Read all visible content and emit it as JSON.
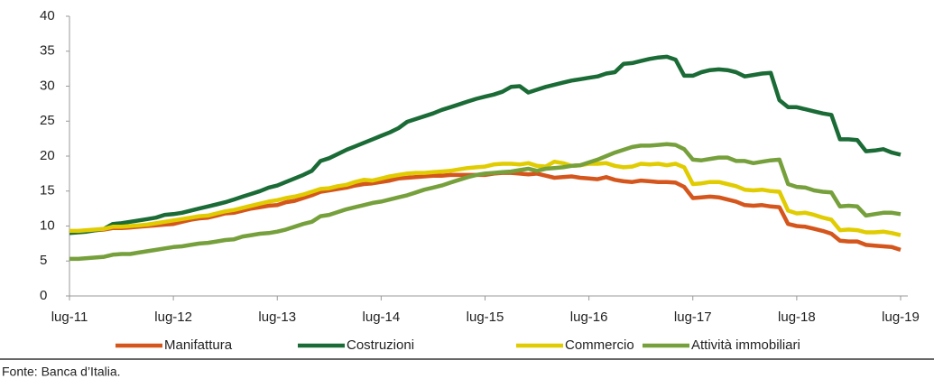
{
  "chart_data": {
    "type": "line",
    "categories": [
      "lug-11",
      null,
      null,
      null,
      null,
      null,
      null,
      null,
      null,
      null,
      null,
      null,
      "lug-12",
      null,
      null,
      null,
      null,
      null,
      null,
      null,
      null,
      null,
      null,
      null,
      "lug-13",
      null,
      null,
      null,
      null,
      null,
      null,
      null,
      null,
      null,
      null,
      null,
      "lug-14",
      null,
      null,
      null,
      null,
      null,
      null,
      null,
      null,
      null,
      null,
      null,
      "lug-15",
      null,
      null,
      null,
      null,
      null,
      null,
      null,
      null,
      null,
      null,
      null,
      "lug-16",
      null,
      null,
      null,
      null,
      null,
      null,
      null,
      null,
      null,
      null,
      null,
      "lug-17",
      null,
      null,
      null,
      null,
      null,
      null,
      null,
      null,
      null,
      null,
      null,
      "lug-18",
      null,
      null,
      null,
      null,
      null,
      null,
      null,
      null,
      null,
      null,
      null,
      "lug-19"
    ],
    "series": [
      {
        "name": "Manifattura",
        "color": "#d4561c",
        "values": [
          9.2,
          9.2,
          9.3,
          9.4,
          9.5,
          9.7,
          9.7,
          9.8,
          9.9,
          10.0,
          10.1,
          10.2,
          10.3,
          10.6,
          10.9,
          11.1,
          11.2,
          11.5,
          11.8,
          11.9,
          12.2,
          12.5,
          12.7,
          12.9,
          13.0,
          13.4,
          13.6,
          14.0,
          14.4,
          14.9,
          15.1,
          15.3,
          15.5,
          15.8,
          16.0,
          16.1,
          16.3,
          16.5,
          16.8,
          16.9,
          17.0,
          17.1,
          17.2,
          17.2,
          17.3,
          17.3,
          17.3,
          17.3,
          17.3,
          17.5,
          17.6,
          17.6,
          17.5,
          17.4,
          17.5,
          17.2,
          16.9,
          17.0,
          17.1,
          16.9,
          16.8,
          16.7,
          17.0,
          16.6,
          16.4,
          16.3,
          16.5,
          16.4,
          16.3,
          16.3,
          16.2,
          15.6,
          14.0,
          14.1,
          14.2,
          14.1,
          13.8,
          13.5,
          13.0,
          12.9,
          13.0,
          12.8,
          12.7,
          10.3,
          10.0,
          9.9,
          9.6,
          9.3,
          8.9,
          7.9,
          7.8,
          7.8,
          7.3,
          7.2,
          7.1,
          7.0,
          6.6
        ]
      },
      {
        "name": "Costruzioni",
        "color": "#1a6b35",
        "values": [
          9.0,
          9.1,
          9.2,
          9.4,
          9.6,
          10.3,
          10.4,
          10.6,
          10.8,
          11.0,
          11.2,
          11.6,
          11.7,
          11.9,
          12.2,
          12.5,
          12.8,
          13.1,
          13.4,
          13.8,
          14.2,
          14.6,
          15.0,
          15.5,
          15.8,
          16.3,
          16.8,
          17.3,
          17.9,
          19.3,
          19.7,
          20.3,
          20.9,
          21.4,
          21.9,
          22.4,
          22.9,
          23.4,
          24.0,
          24.9,
          25.3,
          25.7,
          26.1,
          26.6,
          27.0,
          27.4,
          27.8,
          28.2,
          28.5,
          28.8,
          29.2,
          29.9,
          30.0,
          29.1,
          29.5,
          29.9,
          30.2,
          30.5,
          30.8,
          31.0,
          31.2,
          31.4,
          31.8,
          32.0,
          33.2,
          33.3,
          33.6,
          33.9,
          34.1,
          34.2,
          33.8,
          31.5,
          31.5,
          32.0,
          32.3,
          32.4,
          32.3,
          32.0,
          31.4,
          31.6,
          31.8,
          31.9,
          28.0,
          27.0,
          27.0,
          26.7,
          26.4,
          26.1,
          25.9,
          22.4,
          22.4,
          22.3,
          20.7,
          20.8,
          21.0,
          20.5,
          20.2
        ]
      },
      {
        "name": "Commercio",
        "color": "#e0cc00",
        "values": [
          9.3,
          9.3,
          9.4,
          9.5,
          9.6,
          9.9,
          9.9,
          10.0,
          10.1,
          10.2,
          10.4,
          10.6,
          10.8,
          11.0,
          11.2,
          11.4,
          11.5,
          11.8,
          12.1,
          12.3,
          12.6,
          12.9,
          13.2,
          13.5,
          13.7,
          14.0,
          14.2,
          14.5,
          14.9,
          15.3,
          15.4,
          15.7,
          15.9,
          16.3,
          16.6,
          16.5,
          16.8,
          17.1,
          17.3,
          17.5,
          17.6,
          17.6,
          17.7,
          17.8,
          17.9,
          18.1,
          18.3,
          18.4,
          18.5,
          18.8,
          18.9,
          18.9,
          18.8,
          19.0,
          18.6,
          18.5,
          19.2,
          19.0,
          18.6,
          18.7,
          18.9,
          18.9,
          19.0,
          18.6,
          18.4,
          18.5,
          18.9,
          18.8,
          18.9,
          18.7,
          18.9,
          18.4,
          16.0,
          16.1,
          16.3,
          16.3,
          16.0,
          15.7,
          15.2,
          15.1,
          15.2,
          15.0,
          14.9,
          12.2,
          11.8,
          11.9,
          11.6,
          11.2,
          10.9,
          9.4,
          9.5,
          9.4,
          9.1,
          9.1,
          9.2,
          9.0,
          8.7
        ]
      },
      {
        "name": "Attività immobiliari",
        "color": "#76a03b",
        "values": [
          5.3,
          5.3,
          5.4,
          5.5,
          5.6,
          5.9,
          6.0,
          6.0,
          6.2,
          6.4,
          6.6,
          6.8,
          7.0,
          7.1,
          7.3,
          7.5,
          7.6,
          7.8,
          8.0,
          8.1,
          8.5,
          8.7,
          8.9,
          9.0,
          9.2,
          9.5,
          9.9,
          10.3,
          10.6,
          11.4,
          11.6,
          12.0,
          12.4,
          12.7,
          13.0,
          13.3,
          13.5,
          13.8,
          14.1,
          14.4,
          14.8,
          15.2,
          15.5,
          15.8,
          16.2,
          16.6,
          17.0,
          17.3,
          17.5,
          17.6,
          17.7,
          17.8,
          18.0,
          18.2,
          17.9,
          18.2,
          18.3,
          18.4,
          18.6,
          18.7,
          19.1,
          19.5,
          20.0,
          20.5,
          20.9,
          21.3,
          21.5,
          21.5,
          21.6,
          21.7,
          21.6,
          21.0,
          19.5,
          19.4,
          19.6,
          19.8,
          19.8,
          19.3,
          19.3,
          19.0,
          19.2,
          19.4,
          19.5,
          16.0,
          15.6,
          15.5,
          15.1,
          14.9,
          14.8,
          12.8,
          12.9,
          12.8,
          11.5,
          11.7,
          11.9,
          11.9,
          11.7
        ]
      }
    ],
    "ylim": [
      0,
      40
    ],
    "yticks": [
      0,
      5,
      10,
      15,
      20,
      25,
      30,
      35,
      40
    ],
    "grid": false,
    "source": "Fonte: Banca d’Italia."
  }
}
